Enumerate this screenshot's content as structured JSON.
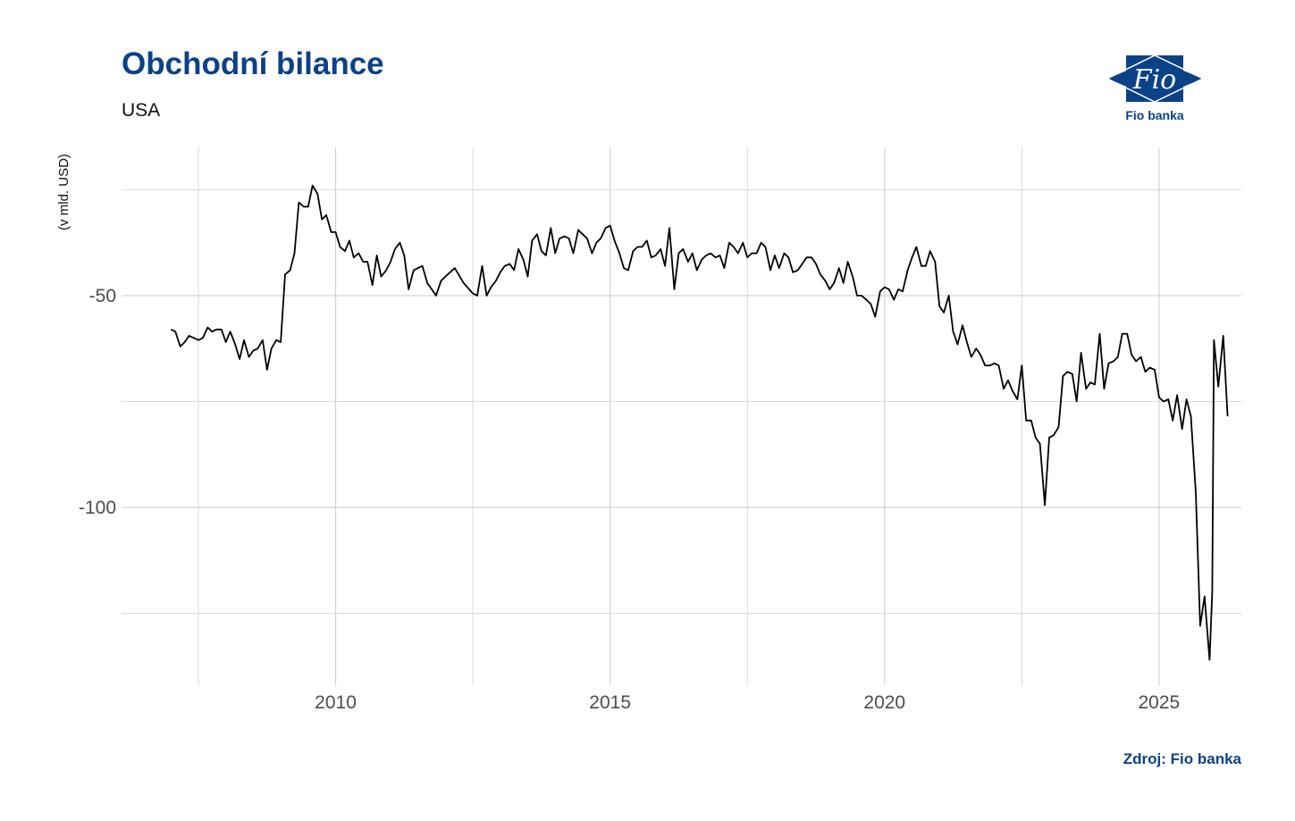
{
  "header": {
    "title": "Obchodní bilance",
    "subtitle": "USA"
  },
  "footer": {
    "source": "Zdroj: Fio banka"
  },
  "logo": {
    "mark_text": "Fio",
    "caption": "Fio banka",
    "color": "#0b4287"
  },
  "colors": {
    "accent": "#0b4287",
    "line": "#000000",
    "grid": "#d0d0d0"
  },
  "chart_data": {
    "type": "line",
    "title": "Obchodní bilance",
    "subtitle": "USA",
    "xlabel": "",
    "ylabel": "(v mld. USD)",
    "xlim": [
      2006.1,
      2026.5
    ],
    "ylim": [
      -142,
      -15
    ],
    "x_ticks": [
      2010,
      2015,
      2020,
      2025
    ],
    "x_tick_labels": [
      "2010",
      "2015",
      "2020",
      "2025"
    ],
    "y_ticks": [
      -50,
      -100
    ],
    "y_tick_labels": [
      "-50",
      "-100"
    ],
    "grid": true,
    "legend": "none",
    "series": [
      {
        "values": [
          [
            2007.0,
            -58
          ],
          [
            2007.08,
            -58.5
          ],
          [
            2007.17,
            -62
          ],
          [
            2007.25,
            -61
          ],
          [
            2007.33,
            -59.5
          ],
          [
            2007.42,
            -60
          ],
          [
            2007.5,
            -60.5
          ],
          [
            2007.58,
            -60
          ],
          [
            2007.67,
            -57.5
          ],
          [
            2007.75,
            -58.5
          ],
          [
            2007.83,
            -58
          ],
          [
            2007.92,
            -58
          ],
          [
            2008.0,
            -61
          ],
          [
            2008.08,
            -58.5
          ],
          [
            2008.17,
            -61.5
          ],
          [
            2008.25,
            -65
          ],
          [
            2008.33,
            -60.5
          ],
          [
            2008.42,
            -64.5
          ],
          [
            2008.5,
            -63
          ],
          [
            2008.58,
            -62.5
          ],
          [
            2008.67,
            -60.5
          ],
          [
            2008.75,
            -67.5
          ],
          [
            2008.83,
            -62.5
          ],
          [
            2008.92,
            -60.5
          ],
          [
            2009.0,
            -61
          ],
          [
            2009.08,
            -45
          ],
          [
            2009.17,
            -44
          ],
          [
            2009.25,
            -40
          ],
          [
            2009.33,
            -28
          ],
          [
            2009.42,
            -29
          ],
          [
            2009.5,
            -29
          ],
          [
            2009.58,
            -24
          ],
          [
            2009.67,
            -26
          ],
          [
            2009.75,
            -32
          ],
          [
            2009.83,
            -31
          ],
          [
            2009.92,
            -35
          ],
          [
            2010.0,
            -35
          ],
          [
            2010.08,
            -38.5
          ],
          [
            2010.17,
            -39.5
          ],
          [
            2010.25,
            -37
          ],
          [
            2010.33,
            -41
          ],
          [
            2010.42,
            -40
          ],
          [
            2010.5,
            -42
          ],
          [
            2010.58,
            -42
          ],
          [
            2010.67,
            -47.5
          ],
          [
            2010.75,
            -40.5
          ],
          [
            2010.83,
            -45.5
          ],
          [
            2010.92,
            -44
          ],
          [
            2011.0,
            -42
          ],
          [
            2011.08,
            -39
          ],
          [
            2011.17,
            -37.5
          ],
          [
            2011.25,
            -40.5
          ],
          [
            2011.33,
            -48.5
          ],
          [
            2011.42,
            -44
          ],
          [
            2011.5,
            -43.5
          ],
          [
            2011.58,
            -43
          ],
          [
            2011.67,
            -47
          ],
          [
            2011.75,
            -48.5
          ],
          [
            2011.83,
            -50
          ],
          [
            2011.92,
            -46.5
          ],
          [
            2012.0,
            -45.5
          ],
          [
            2012.17,
            -43.5
          ],
          [
            2012.33,
            -47
          ],
          [
            2012.5,
            -49.5
          ],
          [
            2012.58,
            -50
          ],
          [
            2012.67,
            -43
          ],
          [
            2012.75,
            -50
          ],
          [
            2012.83,
            -48
          ],
          [
            2012.92,
            -46.5
          ],
          [
            2013.0,
            -44.5
          ],
          [
            2013.08,
            -43
          ],
          [
            2013.17,
            -42.5
          ],
          [
            2013.25,
            -44
          ],
          [
            2013.33,
            -39
          ],
          [
            2013.42,
            -41.5
          ],
          [
            2013.5,
            -45.5
          ],
          [
            2013.58,
            -37
          ],
          [
            2013.67,
            -35.5
          ],
          [
            2013.75,
            -39.5
          ],
          [
            2013.83,
            -40.5
          ],
          [
            2013.92,
            -34
          ],
          [
            2014.0,
            -40
          ],
          [
            2014.08,
            -36.5
          ],
          [
            2014.17,
            -36
          ],
          [
            2014.25,
            -36.5
          ],
          [
            2014.33,
            -40
          ],
          [
            2014.42,
            -34.5
          ],
          [
            2014.5,
            -35.5
          ],
          [
            2014.58,
            -36.5
          ],
          [
            2014.67,
            -40
          ],
          [
            2014.75,
            -37.5
          ],
          [
            2014.83,
            -36.5
          ],
          [
            2014.92,
            -34
          ],
          [
            2015.0,
            -33.5
          ],
          [
            2015.08,
            -37
          ],
          [
            2015.17,
            -40
          ],
          [
            2015.25,
            -43.5
          ],
          [
            2015.33,
            -44
          ],
          [
            2015.42,
            -39.5
          ],
          [
            2015.5,
            -38.5
          ],
          [
            2015.58,
            -38.5
          ],
          [
            2015.67,
            -37
          ],
          [
            2015.75,
            -41
          ],
          [
            2015.83,
            -40.5
          ],
          [
            2015.92,
            -39
          ],
          [
            2016.0,
            -43
          ],
          [
            2016.08,
            -34
          ],
          [
            2016.17,
            -48.5
          ],
          [
            2016.25,
            -40
          ],
          [
            2016.33,
            -39
          ],
          [
            2016.42,
            -42
          ],
          [
            2016.5,
            -40
          ],
          [
            2016.58,
            -44
          ],
          [
            2016.67,
            -41.5
          ],
          [
            2016.75,
            -40.5
          ],
          [
            2016.83,
            -40
          ],
          [
            2016.92,
            -41
          ],
          [
            2017.0,
            -40.5
          ],
          [
            2017.08,
            -43.5
          ],
          [
            2017.17,
            -37.5
          ],
          [
            2017.25,
            -38.5
          ],
          [
            2017.33,
            -40
          ],
          [
            2017.42,
            -37.5
          ],
          [
            2017.5,
            -41
          ],
          [
            2017.58,
            -40
          ],
          [
            2017.67,
            -40
          ],
          [
            2017.75,
            -37.5
          ],
          [
            2017.83,
            -38.5
          ],
          [
            2017.92,
            -44
          ],
          [
            2018.0,
            -40.5
          ],
          [
            2018.08,
            -43.5
          ],
          [
            2018.17,
            -40
          ],
          [
            2018.25,
            -41
          ],
          [
            2018.33,
            -44.5
          ],
          [
            2018.42,
            -44
          ],
          [
            2018.5,
            -42.5
          ],
          [
            2018.58,
            -41
          ],
          [
            2018.67,
            -41
          ],
          [
            2018.75,
            -42.5
          ],
          [
            2018.83,
            -45
          ],
          [
            2018.92,
            -46.5
          ],
          [
            2019.0,
            -48.5
          ],
          [
            2019.08,
            -47
          ],
          [
            2019.17,
            -43.5
          ],
          [
            2019.25,
            -47
          ],
          [
            2019.33,
            -42
          ],
          [
            2019.42,
            -45.5
          ],
          [
            2019.5,
            -50
          ],
          [
            2019.58,
            -50
          ],
          [
            2019.67,
            -51
          ],
          [
            2019.75,
            -52
          ],
          [
            2019.83,
            -55
          ],
          [
            2019.92,
            -49
          ],
          [
            2020.0,
            -48
          ],
          [
            2020.08,
            -48.5
          ],
          [
            2020.17,
            -51
          ],
          [
            2020.25,
            -48.5
          ],
          [
            2020.33,
            -49
          ],
          [
            2020.42,
            -44
          ],
          [
            2020.5,
            -41
          ],
          [
            2020.58,
            -38.5
          ],
          [
            2020.67,
            -43
          ],
          [
            2020.75,
            -43
          ],
          [
            2020.83,
            -39.5
          ],
          [
            2020.92,
            -42
          ],
          [
            2021.0,
            -52.5
          ],
          [
            2021.08,
            -54
          ],
          [
            2021.17,
            -50
          ],
          [
            2021.25,
            -58.5
          ],
          [
            2021.33,
            -61.5
          ],
          [
            2021.42,
            -57
          ],
          [
            2021.5,
            -61
          ],
          [
            2021.58,
            -64.5
          ],
          [
            2021.67,
            -62.5
          ],
          [
            2021.75,
            -64
          ],
          [
            2021.83,
            -66.5
          ],
          [
            2021.92,
            -66.5
          ],
          [
            2022.0,
            -66
          ],
          [
            2022.08,
            -66.5
          ],
          [
            2022.17,
            -72
          ],
          [
            2022.25,
            -70
          ],
          [
            2022.33,
            -72.5
          ],
          [
            2022.42,
            -74.5
          ],
          [
            2022.5,
            -66.5
          ],
          [
            2022.58,
            -79.5
          ],
          [
            2022.67,
            -79.5
          ],
          [
            2022.75,
            -83.5
          ],
          [
            2022.83,
            -85
          ],
          [
            2022.92,
            -99.5
          ],
          [
            2023.0,
            -83.5
          ],
          [
            2023.08,
            -83
          ],
          [
            2023.17,
            -81
          ],
          [
            2023.25,
            -69
          ],
          [
            2023.33,
            -68
          ],
          [
            2023.42,
            -68.5
          ],
          [
            2023.5,
            -75
          ],
          [
            2023.58,
            -63.5
          ],
          [
            2023.67,
            -72
          ],
          [
            2023.75,
            -70.5
          ],
          [
            2023.83,
            -71
          ],
          [
            2023.92,
            -59
          ],
          [
            2024.0,
            -72
          ],
          [
            2024.08,
            -66
          ],
          [
            2024.17,
            -65.5
          ],
          [
            2024.25,
            -64.5
          ],
          [
            2024.33,
            -59
          ],
          [
            2024.42,
            -59
          ],
          [
            2024.5,
            -64
          ],
          [
            2024.58,
            -65.5
          ],
          [
            2024.67,
            -64.5
          ],
          [
            2024.75,
            -68
          ],
          [
            2024.83,
            -67
          ],
          [
            2024.92,
            -67.5
          ],
          [
            2025.0,
            -74
          ],
          [
            2025.08,
            -75
          ],
          [
            2025.17,
            -74.5
          ],
          [
            2025.25,
            -79.5
          ],
          [
            2025.33,
            -73.5
          ],
          [
            2025.42,
            -81.5
          ],
          [
            2025.5,
            -74.5
          ],
          [
            2025.58,
            -78.5
          ],
          [
            2025.67,
            -96.5
          ],
          [
            2025.75,
            -128
          ],
          [
            2025.83,
            -121
          ],
          [
            2025.92,
            -136
          ],
          [
            2025.97,
            -120
          ],
          [
            2026.0,
            -60.5
          ],
          [
            2026.08,
            -71.5
          ],
          [
            2026.17,
            -59.5
          ],
          [
            2026.25,
            -78.5
          ]
        ]
      }
    ]
  }
}
